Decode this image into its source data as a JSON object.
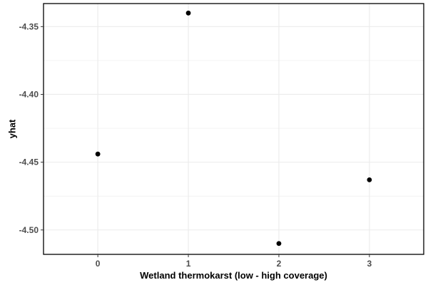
{
  "chart_data": {
    "type": "scatter",
    "title": "",
    "xlabel": "Wetland thermokarst (low - high coverage)",
    "ylabel": "yhat",
    "categories": [
      "0",
      "1",
      "2",
      "3"
    ],
    "x": [
      0,
      1,
      2,
      3
    ],
    "y": [
      -4.444,
      -4.34,
      -4.51,
      -4.463
    ],
    "xlim": [
      -0.6,
      3.6
    ],
    "ylim": [
      -4.518,
      -4.333
    ],
    "x_ticks": [
      0,
      1,
      2,
      3
    ],
    "x_tick_labels": [
      "0",
      "1",
      "2",
      "3"
    ],
    "y_ticks": [
      -4.35,
      -4.4,
      -4.45,
      -4.5
    ],
    "y_tick_labels": [
      "-4.35",
      "-4.40",
      "-4.45",
      "-4.50"
    ],
    "grid": true,
    "legend": "none",
    "point_color": "#000000",
    "grid_color": "#ebebeb",
    "panel_border_color": "#000000"
  }
}
